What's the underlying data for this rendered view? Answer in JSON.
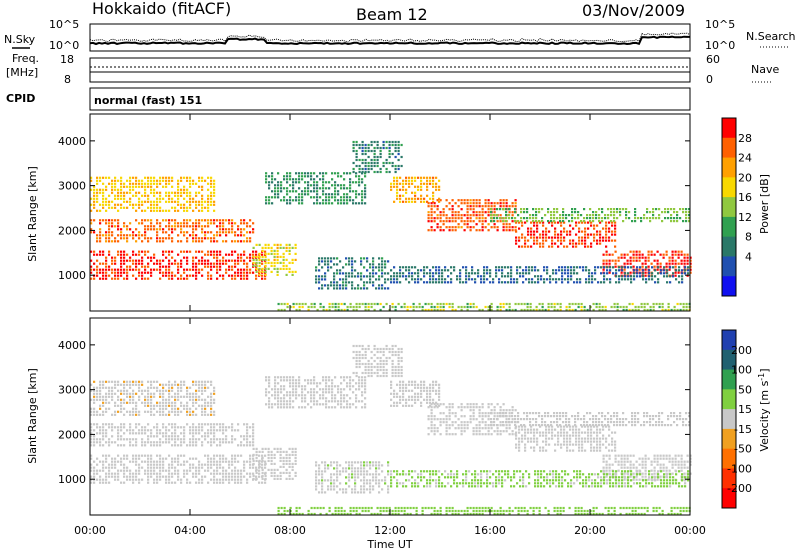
{
  "header": {
    "station": "Hokkaido (fitACF)",
    "beam": "Beam 12",
    "date": "03/Nov/2009"
  },
  "status_panels": {
    "nsky_label": "N.Sky",
    "nsearch_label": "N.Search",
    "noise_ticks": [
      "10^5",
      "10^0"
    ],
    "freq_label": "Freq.",
    "freq_unit": "[MHz]",
    "freq_ticks": [
      "18",
      "8"
    ],
    "nave_label": "Nave",
    "nave_ticks": [
      "60",
      "0"
    ],
    "cpid_label": "CPID",
    "cpid_value": "normal (fast) 151"
  },
  "power_panel": {
    "ylabel": "Slant Range [km]",
    "colorbar_label": "Power [dB]",
    "colorbar_ticks": [
      "28",
      "24",
      "20",
      "16",
      "12",
      "8",
      "4"
    ],
    "colorbar_colors": [
      "#ff0000",
      "#ff6000",
      "#ffa000",
      "#f8d800",
      "#90c840",
      "#30a050",
      "#2a7868",
      "#2050b0",
      "#1010f0"
    ]
  },
  "velocity_panel": {
    "ylabel": "Slant Range [km]",
    "colorbar_label": "Velocity [m s",
    "colorbar_unit_sup": "-1",
    "colorbar_label_end": "]",
    "colorbar_ticks": [
      "200",
      "100",
      "50",
      "15",
      "-15",
      "-50",
      "-100",
      "-200"
    ],
    "colorbar_colors": [
      "#2040b0",
      "#206070",
      "#30a050",
      "#80d040",
      "#c8c8c8",
      "#f0a020",
      "#ff7000",
      "#ff3000",
      "#ff0000"
    ]
  },
  "xaxis": {
    "label": "Time UT",
    "ticks": [
      "00:00",
      "04:00",
      "08:00",
      "12:00",
      "16:00",
      "20:00",
      "00:00"
    ]
  },
  "chart_data": {
    "type": "heatmap",
    "x_unit": "hours UT",
    "xlim": [
      0,
      24
    ],
    "ylim": [
      200,
      4600
    ],
    "yticks": [
      1000,
      2000,
      3000,
      4000
    ],
    "power_scale": [
      0,
      30
    ],
    "velocity_scale": [
      -250,
      250
    ],
    "features": [
      {
        "name": "band",
        "t_start": 0,
        "t_end": 7,
        "range_lo": 900,
        "range_hi": 1550,
        "power": 29,
        "velocity": 0
      },
      {
        "name": "band",
        "t_start": 0,
        "t_end": 6.5,
        "range_lo": 1750,
        "range_hi": 2250,
        "power": 26,
        "velocity": -5
      },
      {
        "name": "band",
        "t_start": 0,
        "t_end": 5,
        "range_lo": 2400,
        "range_hi": 3200,
        "power": 20,
        "velocity": -20
      },
      {
        "name": "band",
        "t_start": 6.5,
        "t_end": 8.2,
        "range_lo": 1000,
        "range_hi": 1700,
        "power": 18,
        "velocity": -10
      },
      {
        "name": "band",
        "t_start": 7,
        "t_end": 11,
        "range_lo": 2600,
        "range_hi": 3300,
        "power": 10,
        "velocity": 10
      },
      {
        "name": "band",
        "t_start": 10.5,
        "t_end": 12.5,
        "range_lo": 3300,
        "range_hi": 4000,
        "power": 8,
        "velocity": 5
      },
      {
        "name": "band",
        "t_start": 12,
        "t_end": 14,
        "range_lo": 2600,
        "range_hi": 3200,
        "power": 22,
        "velocity": 0
      },
      {
        "name": "band",
        "t_start": 13.5,
        "t_end": 17,
        "range_lo": 2000,
        "range_hi": 2700,
        "power": 27,
        "velocity": 0
      },
      {
        "name": "band",
        "t_start": 17,
        "t_end": 21,
        "range_lo": 1600,
        "range_hi": 2200,
        "power": 28,
        "velocity": 0
      },
      {
        "name": "band",
        "t_start": 20.5,
        "t_end": 24,
        "range_lo": 950,
        "range_hi": 1550,
        "power": 29,
        "velocity": 0
      },
      {
        "name": "band",
        "t_start": 16,
        "t_end": 24,
        "range_lo": 2200,
        "range_hi": 2500,
        "power": 14,
        "velocity": -5
      },
      {
        "name": "band",
        "t_start": 9,
        "t_end": 12,
        "range_lo": 700,
        "range_hi": 1400,
        "power": 7,
        "velocity": 20
      },
      {
        "name": "band",
        "t_start": 12,
        "t_end": 24,
        "range_lo": 800,
        "range_hi": 1200,
        "power": 6,
        "velocity": 40
      },
      {
        "name": "band",
        "t_start": 7.5,
        "t_end": 24,
        "range_lo": 200,
        "range_hi": 380,
        "power": 15,
        "velocity": 60
      }
    ]
  }
}
